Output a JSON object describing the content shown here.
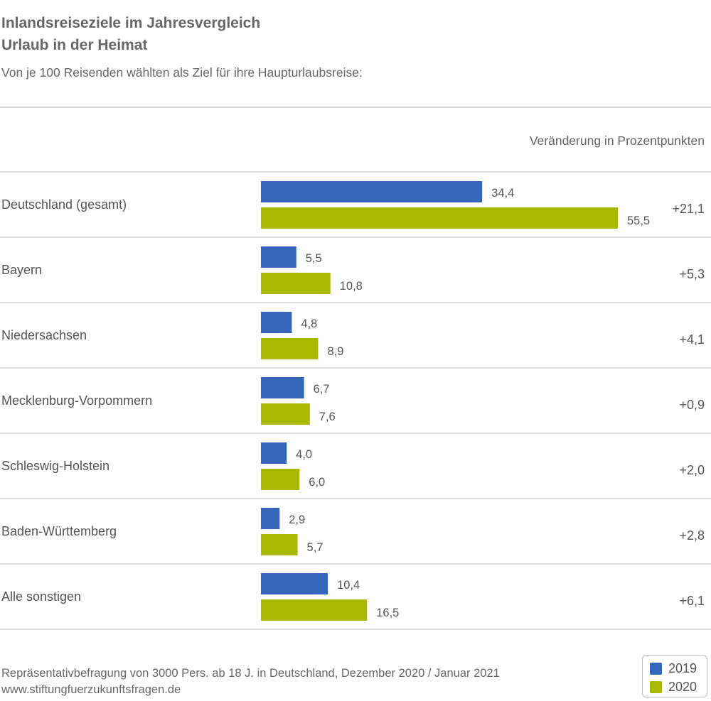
{
  "header": {
    "title_line1": "Inlandsreiseziele im Jahresvergleich",
    "title_line2": "Urlaub in der Heimat",
    "subtitle": "Von je 100 Reisenden wählten als Ziel für ihre Haupturlaubsreise:",
    "change_column_label": "Veränderung in Prozentpunkten"
  },
  "footer": {
    "source": "Repräsentativbefragung von 3000 Pers. ab 18 J. in Deutschland, Dezember 2020 / Januar 2021",
    "website": "www.stiftungfuerzukunftsfragen.de"
  },
  "chart_data": {
    "type": "bar",
    "orientation": "horizontal",
    "title": "Inlandsreiseziele im Jahresvergleich",
    "subtitle": "Urlaub in der Heimat",
    "categories": [
      "Deutschland (gesamt)",
      "Bayern",
      "Niedersachsen",
      "Mecklenburg-Vorpommern",
      "Schleswig-Holstein",
      "Baden-Württemberg",
      "Alle sonstigen"
    ],
    "series": [
      {
        "name": "2019",
        "color": "#3366bb",
        "values": [
          34.4,
          5.5,
          4.8,
          6.7,
          4.0,
          2.9,
          10.4
        ],
        "labels": [
          "34,4",
          "5,5",
          "4,8",
          "6,7",
          "4,0",
          "2,9",
          "10,4"
        ]
      },
      {
        "name": "2020",
        "color": "#a8b900",
        "values": [
          55.5,
          10.8,
          8.9,
          7.6,
          6.0,
          5.7,
          16.5
        ],
        "labels": [
          "55,5",
          "10,8",
          "8,9",
          "7,6",
          "6,0",
          "5,7",
          "16,5"
        ]
      }
    ],
    "changes": [
      "+21,1",
      "+5,3",
      "+4,1",
      "+0,9",
      "+2,0",
      "+2,8",
      "+6,1"
    ],
    "xlim": [
      0,
      55.5
    ],
    "grid": false,
    "legend_position": "bottom-right"
  },
  "colors": {
    "series_2019": "#3366bb",
    "series_2020": "#a8b900",
    "separator": "#d4d4d4",
    "text": "#555555"
  }
}
